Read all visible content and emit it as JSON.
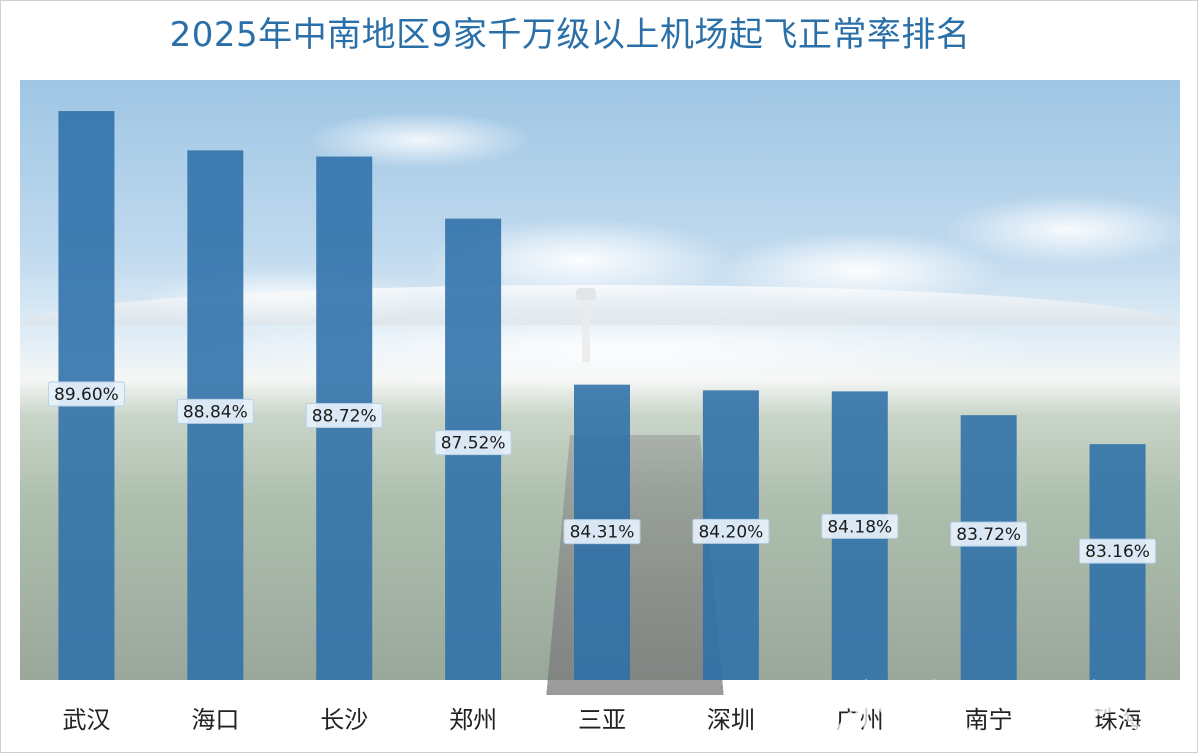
{
  "chart_data": {
    "type": "bar",
    "title": "2025年中南地区9家千万级以上机场起飞正常率排名",
    "categories": [
      "武汉",
      "海口",
      "长沙",
      "郑州",
      "三亚",
      "深圳",
      "广州",
      "南宁",
      "珠海"
    ],
    "values": [
      89.6,
      88.84,
      88.72,
      87.52,
      84.31,
      84.2,
      84.18,
      83.72,
      83.16
    ],
    "value_labels": [
      "89.60%",
      "88.84%",
      "88.72%",
      "87.52%",
      "84.31%",
      "84.20%",
      "84.18%",
      "83.72%",
      "83.16%"
    ],
    "xlabel": "",
    "ylabel": "",
    "ylim": [
      78.6,
      90.2
    ],
    "grid": false,
    "legend": "none",
    "bar_color": "#2e6fa8"
  }
}
